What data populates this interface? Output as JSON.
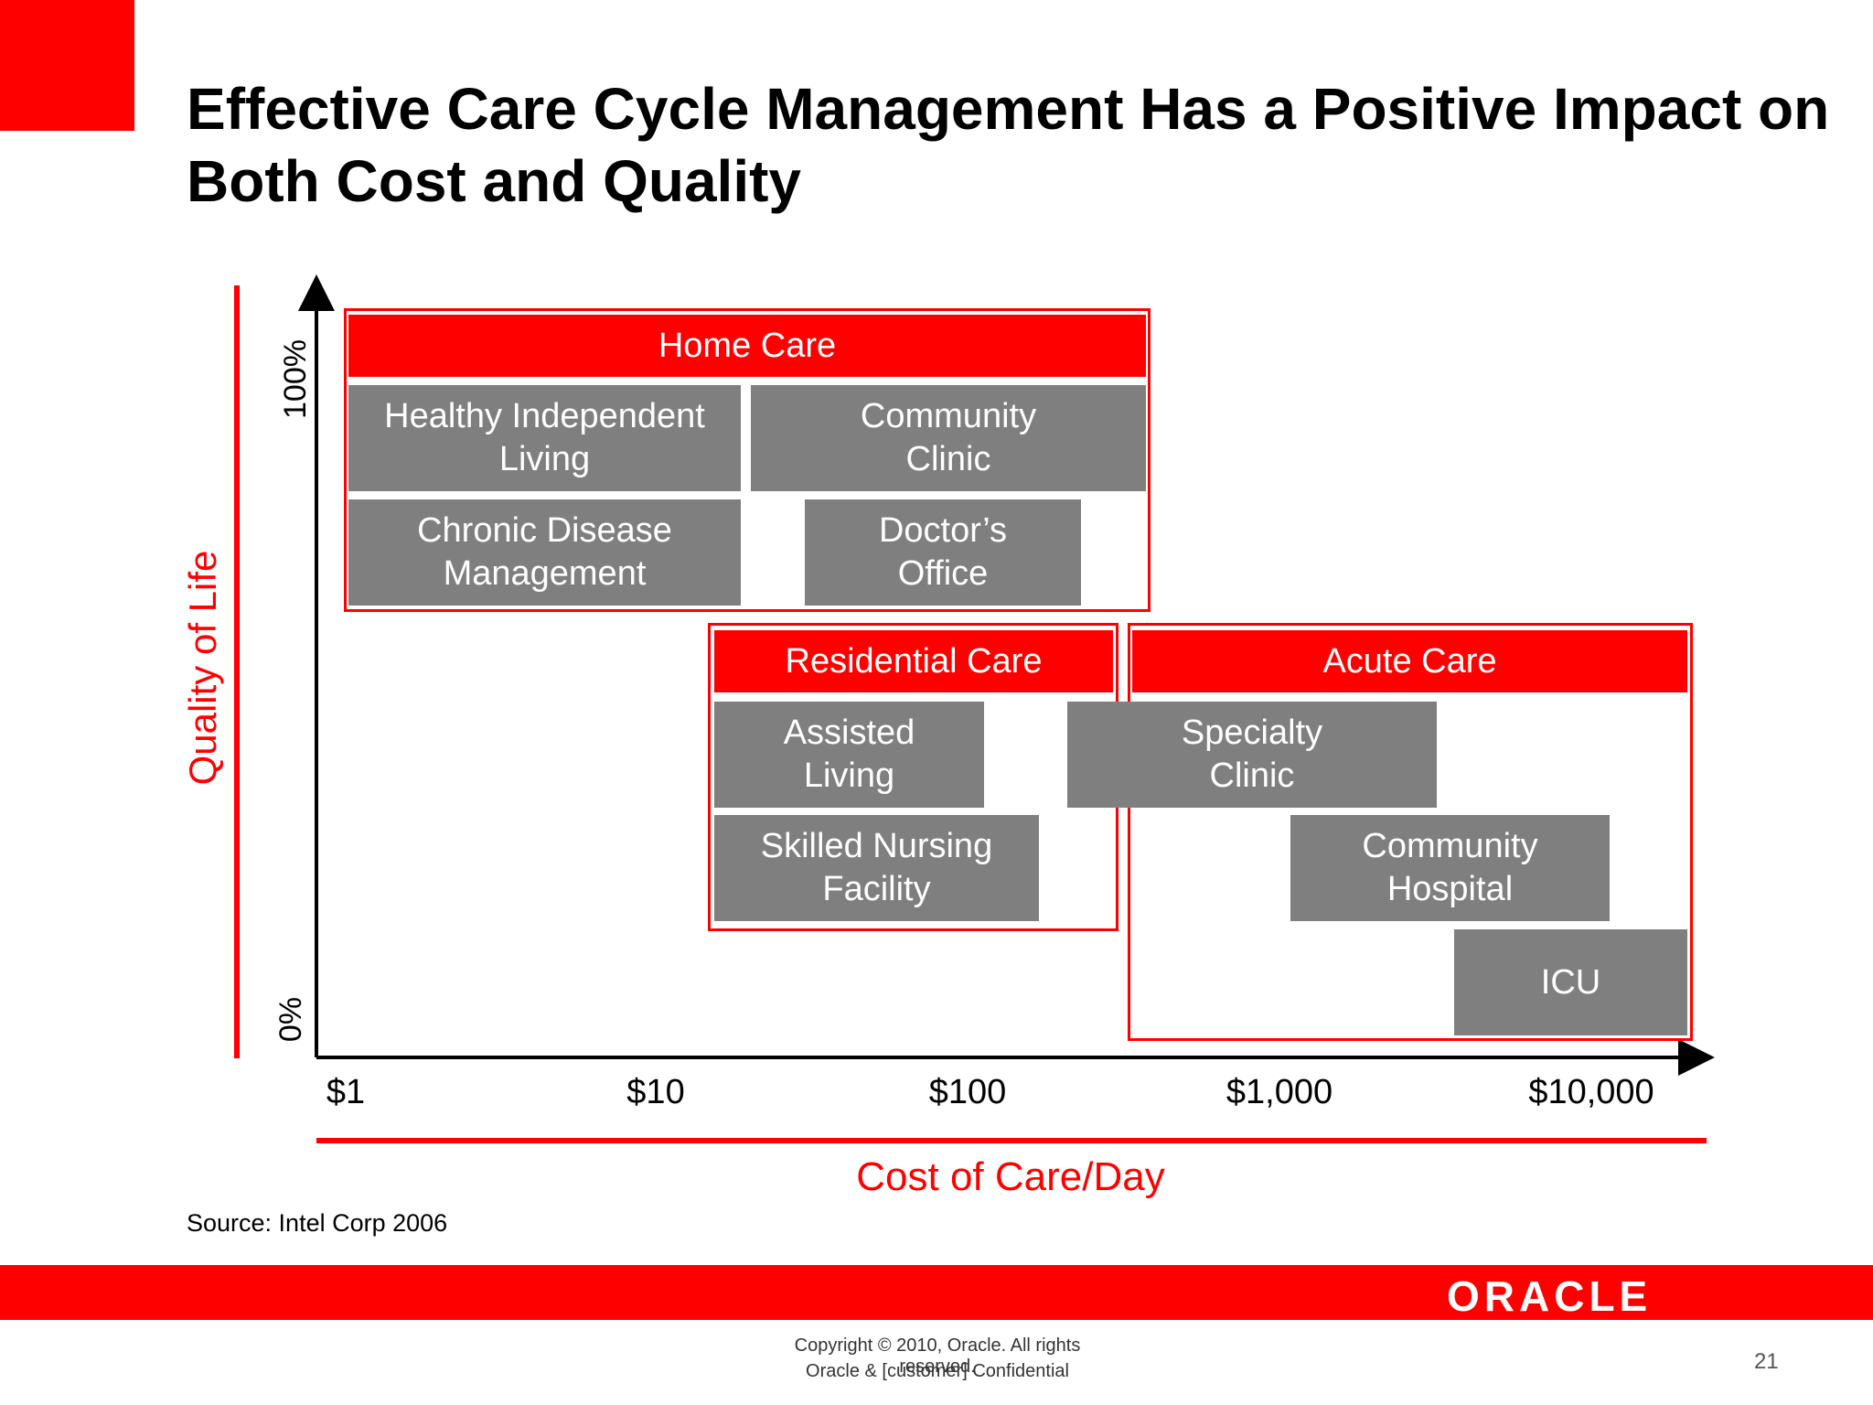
{
  "title": "Effective Care Cycle Management Has a Positive Impact on Both Cost and Quality",
  "axes": {
    "y_label": "Quality of Life",
    "y_ticks": [
      "100%",
      "0%"
    ],
    "x_label": "Cost of Care/Day",
    "x_ticks": [
      "$1",
      "$10",
      "$100",
      "$1,000",
      "$10,000"
    ]
  },
  "groups": {
    "home_care": {
      "header": "Home Care",
      "items": {
        "healthy_independent_living": "Healthy Independent\nLiving",
        "community_clinic": "Community\nClinic",
        "chronic_disease_management": "Chronic Disease\nManagement",
        "doctors_office": "Doctor’s\nOffice"
      }
    },
    "residential_care": {
      "header": "Residential Care",
      "items": {
        "assisted_living": "Assisted\nLiving",
        "skilled_nursing_facility": "Skilled Nursing\nFacility"
      }
    },
    "acute_care": {
      "header": "Acute Care",
      "items": {
        "specialty_clinic": "Specialty\nClinic",
        "community_hospital": "Community\nHospital",
        "icu": "ICU"
      }
    }
  },
  "source": "Source:  Intel Corp 2006",
  "footer": {
    "logo": "ORACLE",
    "copyright": "Copyright © 2010, Oracle. All rights reserved.",
    "confidential": "Oracle & [customer] Confidential",
    "page_number": "21"
  },
  "colors": {
    "accent": "#ff0000",
    "box": "#7f7f7f",
    "text": "#000000"
  }
}
